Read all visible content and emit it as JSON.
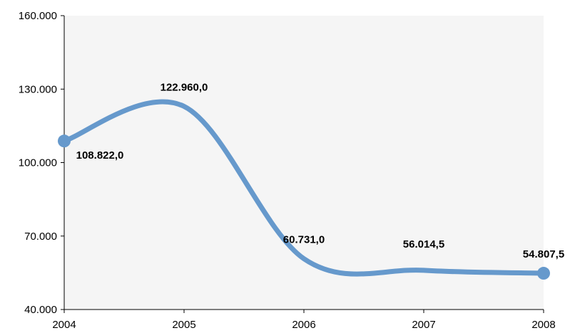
{
  "chart_data": {
    "type": "line",
    "title": "",
    "xlabel": "",
    "ylabel": "",
    "categories": [
      "2004",
      "2005",
      "2006",
      "2007",
      "2008"
    ],
    "series": [
      {
        "values": [
          108822.0,
          122960.0,
          60731.0,
          56014.5,
          54807.5
        ],
        "labels": [
          "108.822,0",
          "122.960,0",
          "60.731,0",
          "56.014,5",
          "54.807,5"
        ],
        "color": "#6699cc"
      }
    ],
    "ylim": [
      40000,
      160000
    ],
    "yticks": [
      40000,
      70000,
      100000,
      130000,
      160000
    ],
    "ytick_labels": [
      "40.000",
      "70.000",
      "100.000",
      "130.000",
      "160.000"
    ],
    "plot_background": "#f5f5f5",
    "smooth": true,
    "markers": "first-and-last",
    "legend": "none",
    "grid": false
  }
}
